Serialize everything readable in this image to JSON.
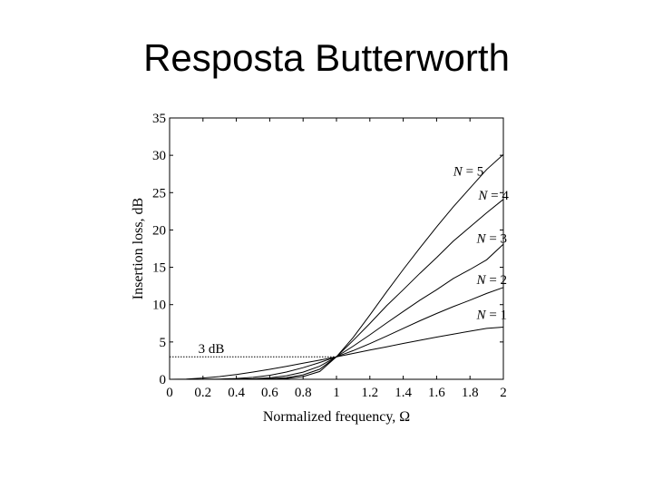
{
  "slide": {
    "title": "Resposta Butterworth"
  },
  "chart_data": {
    "type": "line",
    "title": "",
    "xlabel": "Normalized frequency, Ω",
    "ylabel": "Insertion loss, dB",
    "xlim": [
      0,
      2
    ],
    "ylim": [
      0,
      35
    ],
    "xticks": [
      0,
      0.2,
      0.4,
      0.6,
      0.8,
      1,
      1.2,
      1.4,
      1.6,
      1.8,
      2
    ],
    "xtick_labels": [
      "0",
      "0.2",
      "0.4",
      "0.6",
      "0.8",
      "1",
      "1.2",
      "1.4",
      "1.6",
      "1.8",
      "2"
    ],
    "yticks": [
      0,
      5,
      10,
      15,
      20,
      25,
      30,
      35
    ],
    "ytick_labels": [
      "0",
      "5",
      "10",
      "15",
      "20",
      "25",
      "30",
      "35"
    ],
    "grid": false,
    "x": [
      0,
      0.1,
      0.2,
      0.3,
      0.4,
      0.5,
      0.6,
      0.7,
      0.8,
      0.9,
      1.0,
      1.1,
      1.2,
      1.3,
      1.4,
      1.5,
      1.6,
      1.7,
      1.8,
      1.9,
      2.0
    ],
    "series": [
      {
        "name": "N=1",
        "values": [
          0,
          0.04,
          0.17,
          0.37,
          0.64,
          0.97,
          1.34,
          1.73,
          2.15,
          2.57,
          3.01,
          3.46,
          3.91,
          4.35,
          4.8,
          5.23,
          5.65,
          6.05,
          6.44,
          6.82,
          6.99
        ]
      },
      {
        "name": "N=2",
        "values": [
          0,
          0,
          0.01,
          0.04,
          0.11,
          0.26,
          0.54,
          0.97,
          1.56,
          2.25,
          3.01,
          3.84,
          4.78,
          5.79,
          6.82,
          7.84,
          8.81,
          9.74,
          10.6,
          11.5,
          12.3
        ]
      },
      {
        "name": "N=3",
        "values": [
          0,
          0,
          0,
          0,
          0.02,
          0.07,
          0.2,
          0.47,
          0.96,
          1.75,
          3.01,
          4.44,
          5.96,
          7.53,
          9.08,
          10.6,
          12.0,
          13.5,
          14.7,
          16.0,
          18.1
        ]
      },
      {
        "name": "N=4",
        "values": [
          0,
          0,
          0,
          0,
          0,
          0.02,
          0.07,
          0.22,
          0.59,
          1.35,
          3.01,
          5.2,
          7.47,
          9.84,
          12.0,
          14.2,
          16.3,
          18.5,
          20.4,
          22.3,
          24.1
        ]
      },
      {
        "name": "N=5",
        "values": [
          0,
          0,
          0,
          0,
          0,
          0,
          0.03,
          0.11,
          0.36,
          1.04,
          3.01,
          5.6,
          8.6,
          11.7,
          14.7,
          17.6,
          20.4,
          23.1,
          25.6,
          28.1,
          30.1
        ]
      }
    ],
    "annotations": [
      {
        "text": "3 dB",
        "x": 0.25,
        "y": 3.01
      },
      {
        "text": "N = 5",
        "x": 1.7,
        "y": 26.8
      },
      {
        "text": "N = 4",
        "x": 1.85,
        "y": 23.6
      },
      {
        "text": "N = 3",
        "x": 1.84,
        "y": 17.8
      },
      {
        "text": "N = 2",
        "x": 1.84,
        "y": 12.3
      },
      {
        "text": "N = 1",
        "x": 1.84,
        "y": 7.6
      }
    ],
    "reference_line": {
      "y": 3.01,
      "x_start": 0,
      "x_end": 1,
      "style": "dotted"
    }
  }
}
